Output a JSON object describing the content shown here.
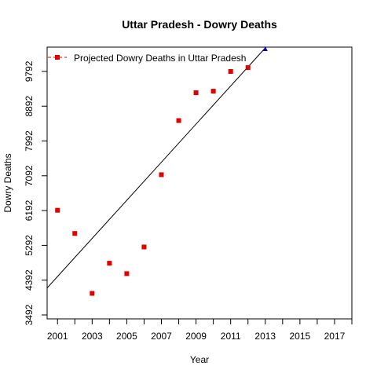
{
  "chart_data": {
    "type": "scatter",
    "title": "Uttar Pradesh  -  Dowry Deaths",
    "xlabel": "Year",
    "ylabel": "Dowry Deaths",
    "xlim": [
      2000.4,
      2018.0
    ],
    "ylim": [
      3390,
      10420
    ],
    "x_ticks": [
      2001,
      2003,
      2005,
      2007,
      2009,
      2011,
      2013,
      2015,
      2017
    ],
    "x_ticks_minor": [
      2002,
      2004,
      2006,
      2008,
      2010,
      2012,
      2014,
      2016,
      2018
    ],
    "y_ticks": [
      3492,
      4392,
      5292,
      6192,
      7092,
      7992,
      8892,
      9792
    ],
    "grid": false,
    "legend_position": "top-left",
    "colors": {
      "observed": "#e00000",
      "projected": "#0000cc",
      "line": "#000000"
    },
    "series": [
      {
        "name": "",
        "kind": "observed",
        "x": [
          2001,
          2002,
          2003,
          2004,
          2005,
          2006,
          2007,
          2008,
          2009,
          2010,
          2011,
          2012
        ],
        "y": [
          6200,
          5600,
          4050,
          4830,
          4560,
          5250,
          7120,
          8520,
          9240,
          9280,
          9790,
          9890
        ]
      },
      {
        "name": "Projected  Dowry Deaths  in  Uttar Pradesh",
        "kind": "projected",
        "x": [
          2013
        ],
        "y": [
          10380
        ]
      }
    ],
    "trend_line": {
      "x": [
        2000.4,
        2013.0
      ],
      "y": [
        4190,
        10400
      ]
    }
  }
}
